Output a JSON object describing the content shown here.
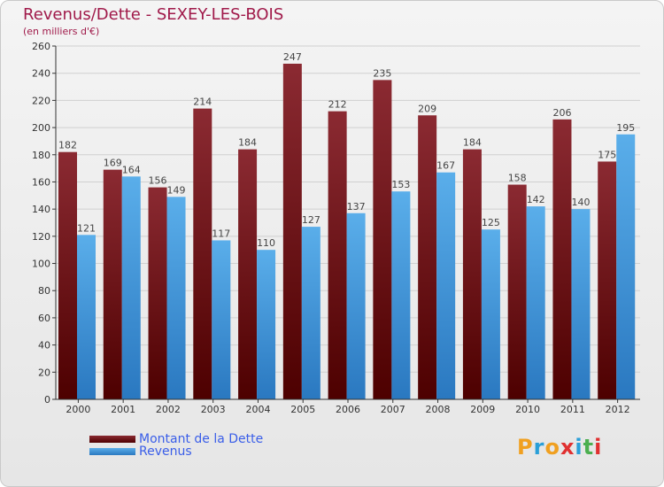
{
  "header": {
    "title": "Revenus/Dette - SEXEY-LES-BOIS",
    "subtitle": "(en milliers d'€)"
  },
  "legend": {
    "debt_label": "Montant de la Dette",
    "revenue_label": "Revenus"
  },
  "logo": {
    "letters": [
      "P",
      "r",
      "o",
      "x",
      "i",
      "t",
      "i"
    ],
    "colors": [
      "#f0a020",
      "#2a9fd8",
      "#f0a020",
      "#e03030",
      "#2a9fd8",
      "#4caf50",
      "#e03030"
    ]
  },
  "colors": {
    "debt_top": "#8b2a32",
    "debt_bottom": "#4d0000",
    "revenue_top": "#5aaeea",
    "revenue_bottom": "#2a78c0",
    "axis": "#333333",
    "grid": "#d0d0d0"
  },
  "chart_data": {
    "type": "bar",
    "title": "Revenus/Dette - SEXEY-LES-BOIS",
    "ylabel": "(en milliers d'€)",
    "xlabel": "",
    "categories": [
      "2000",
      "2001",
      "2002",
      "2003",
      "2004",
      "2005",
      "2006",
      "2007",
      "2008",
      "2009",
      "2010",
      "2011",
      "2012"
    ],
    "series": [
      {
        "name": "Montant de la Dette",
        "values": [
          182,
          169,
          156,
          214,
          184,
          247,
          212,
          235,
          209,
          184,
          158,
          206,
          175
        ]
      },
      {
        "name": "Revenus",
        "values": [
          121,
          164,
          149,
          117,
          110,
          127,
          137,
          153,
          167,
          125,
          142,
          140,
          195
        ]
      }
    ],
    "ylim": [
      0,
      260
    ],
    "yticks": [
      0,
      20,
      40,
      60,
      80,
      100,
      120,
      140,
      160,
      180,
      200,
      220,
      240,
      260
    ],
    "grid": true,
    "legend_position": "bottom-left"
  }
}
